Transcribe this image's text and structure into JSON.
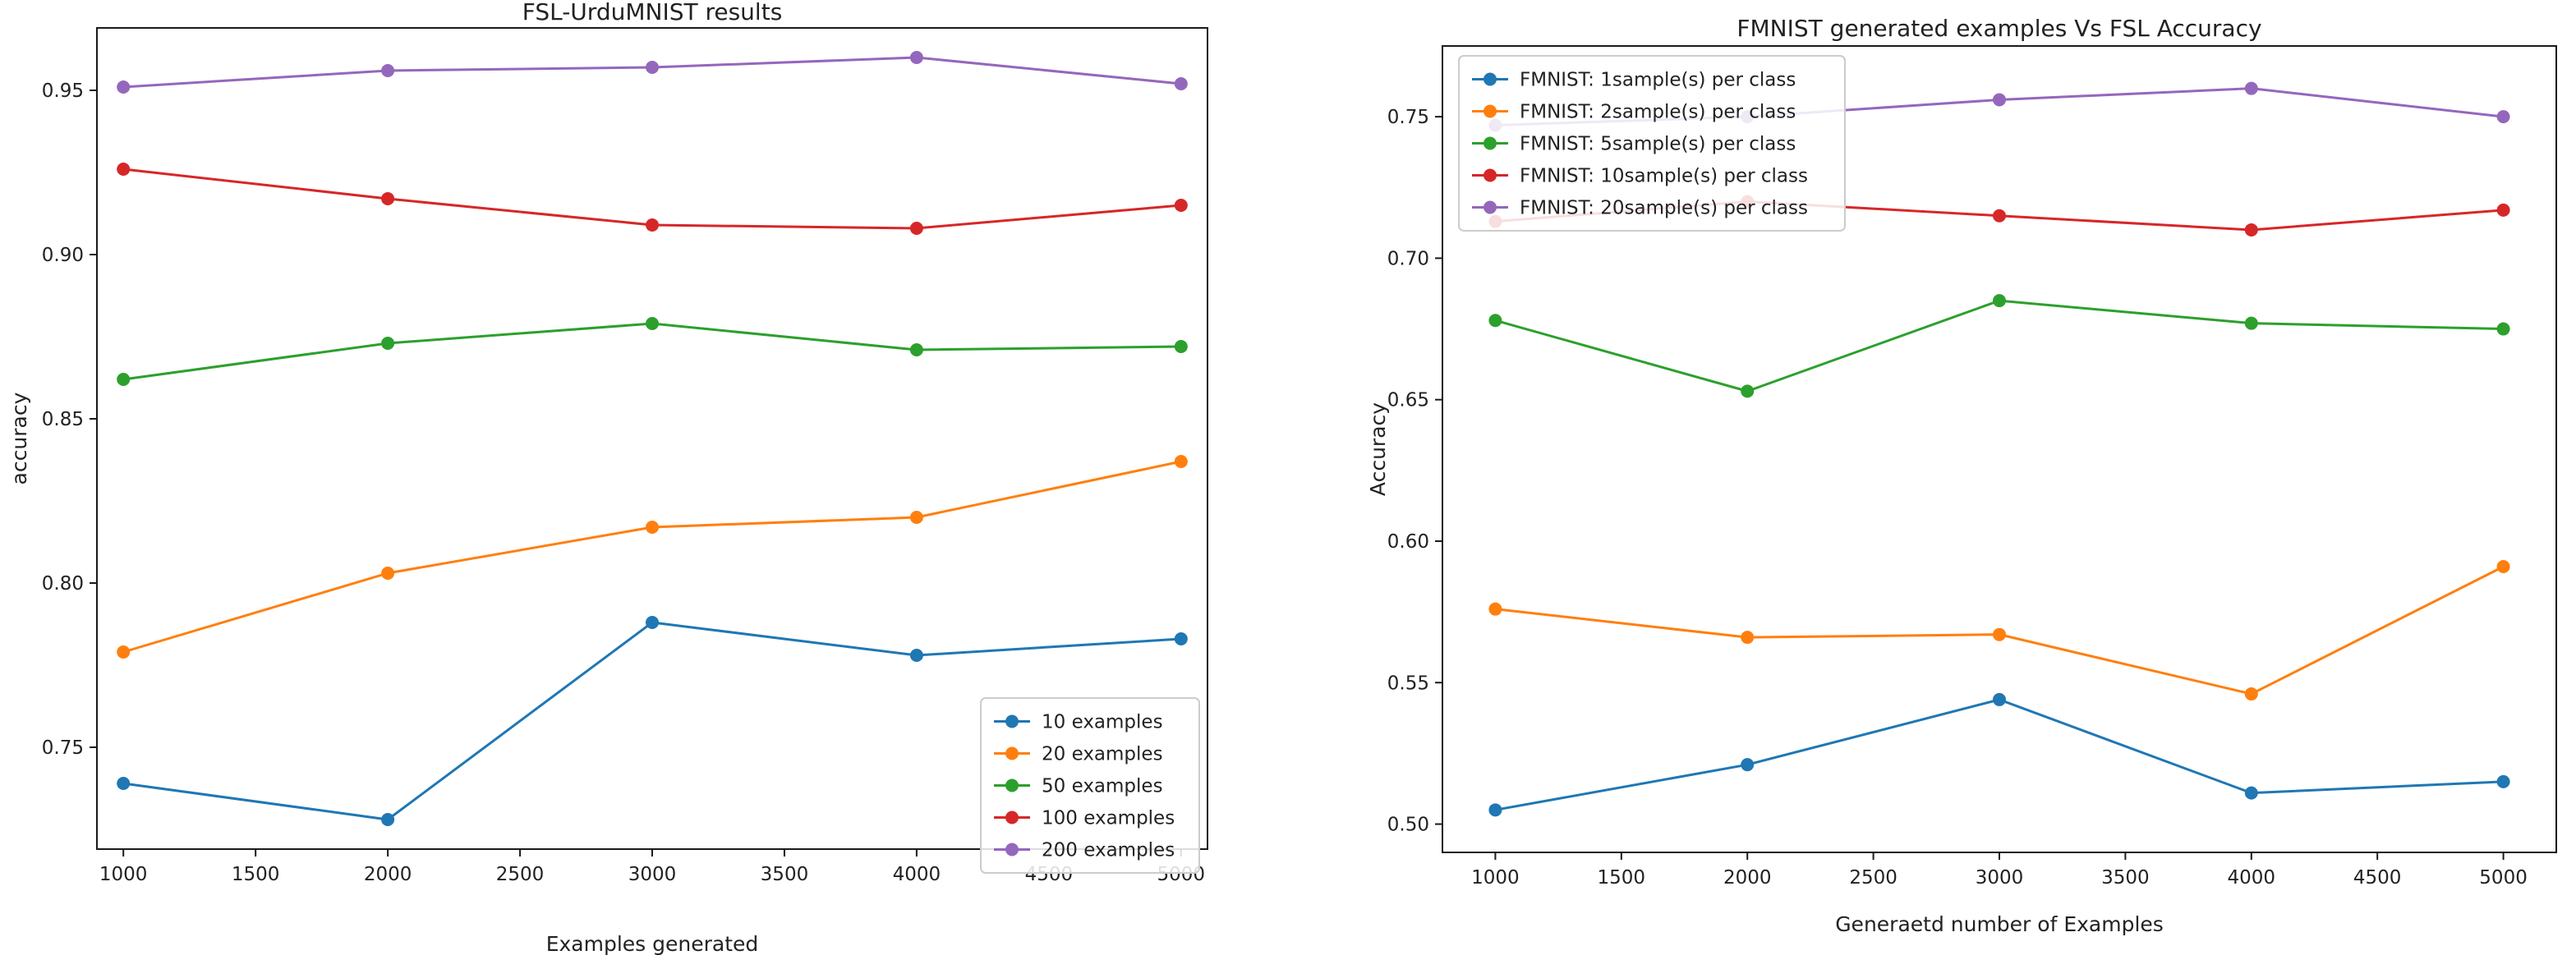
{
  "chart_data": [
    {
      "type": "line",
      "title": "FSL-UrduMNIST results",
      "xlabel": "Examples generated",
      "ylabel": "accuracy",
      "x": [
        1000,
        2000,
        3000,
        4000,
        5000
      ],
      "xlim": [
        900,
        5100
      ],
      "ylim": [
        0.719,
        0.969
      ],
      "xticks": [
        "1000",
        "1500",
        "2000",
        "2500",
        "3000",
        "3500",
        "4000",
        "4500",
        "5000"
      ],
      "yticks": [
        "0.75",
        "0.80",
        "0.85",
        "0.90",
        "0.95"
      ],
      "legend_position": "lower-right",
      "series": [
        {
          "name": "10 examples",
          "color": "#1f77b4",
          "values": [
            0.739,
            0.728,
            0.788,
            0.778,
            0.783
          ]
        },
        {
          "name": "20 examples",
          "color": "#ff7f0e",
          "values": [
            0.779,
            0.803,
            0.817,
            0.82,
            0.837
          ]
        },
        {
          "name": "50 examples",
          "color": "#2ca02c",
          "values": [
            0.862,
            0.873,
            0.879,
            0.871,
            0.872
          ]
        },
        {
          "name": "100 examples",
          "color": "#d62728",
          "values": [
            0.926,
            0.917,
            0.909,
            0.908,
            0.915
          ]
        },
        {
          "name": "200 examples",
          "color": "#9467bd",
          "values": [
            0.951,
            0.956,
            0.957,
            0.96,
            0.952
          ]
        }
      ]
    },
    {
      "type": "line",
      "title": "FMNIST generated examples  Vs FSL Accuracy",
      "xlabel": "Generaetd number of Examples",
      "ylabel": "Accuracy",
      "x": [
        1000,
        2000,
        3000,
        4000,
        5000
      ],
      "xlim": [
        790,
        5210
      ],
      "ylim": [
        0.49,
        0.775
      ],
      "xticks": [
        "1000",
        "1500",
        "2000",
        "2500",
        "3000",
        "3500",
        "4000",
        "4500",
        "5000"
      ],
      "yticks": [
        "0.50",
        "0.55",
        "0.60",
        "0.65",
        "0.70",
        "0.75"
      ],
      "legend_position": "upper-left",
      "series": [
        {
          "name": "FMNIST: 1sample(s) per class",
          "color": "#1f77b4",
          "values": [
            0.505,
            0.521,
            0.544,
            0.511,
            0.515
          ]
        },
        {
          "name": "FMNIST: 2sample(s) per class",
          "color": "#ff7f0e",
          "values": [
            0.576,
            0.566,
            0.567,
            0.546,
            0.591
          ]
        },
        {
          "name": "FMNIST: 5sample(s) per class",
          "color": "#2ca02c",
          "values": [
            0.678,
            0.653,
            0.685,
            0.677,
            0.675
          ]
        },
        {
          "name": "FMNIST: 10sample(s) per class",
          "color": "#d62728",
          "values": [
            0.713,
            0.72,
            0.715,
            0.71,
            0.717
          ]
        },
        {
          "name": "FMNIST: 20sample(s) per class",
          "color": "#9467bd",
          "values": [
            0.747,
            0.75,
            0.756,
            0.76,
            0.75
          ]
        }
      ]
    }
  ]
}
